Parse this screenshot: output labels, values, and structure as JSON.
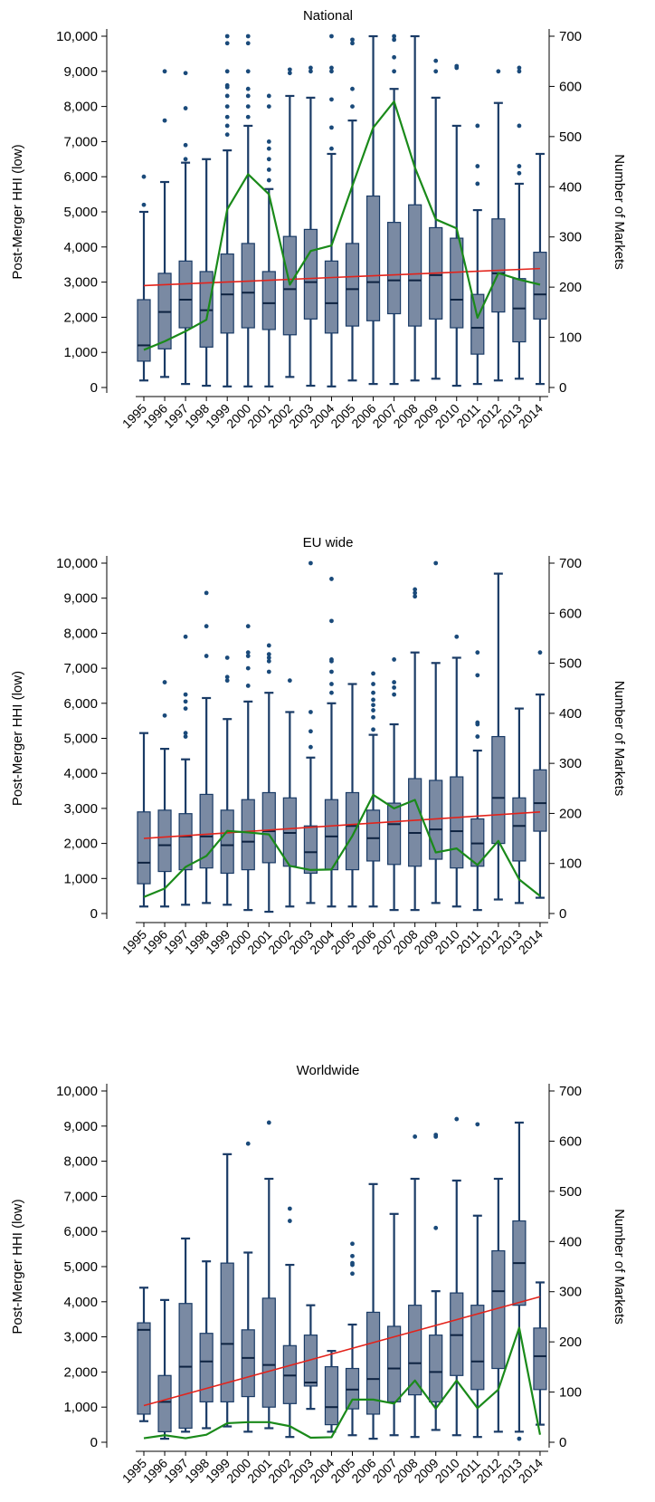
{
  "chart_data": [
    {
      "type": "box",
      "title": "National",
      "ylabel": "Post-Merger HHI (low)",
      "y2label": "Number of Markets",
      "ylim": [
        0,
        10000
      ],
      "y2lim": [
        0,
        700
      ],
      "yticks": [
        "0",
        "1,000",
        "2,000",
        "3,000",
        "4,000",
        "5,000",
        "6,000",
        "7,000",
        "8,000",
        "9,000",
        "10,000"
      ],
      "y2ticks": [
        "0",
        "100",
        "200",
        "300",
        "400",
        "500",
        "600",
        "700"
      ],
      "categories": [
        "1995",
        "1996",
        "1997",
        "1998",
        "1999",
        "2000",
        "2001",
        "2002",
        "2003",
        "2004",
        "2005",
        "2006",
        "2007",
        "2008",
        "2009",
        "2010",
        "2011",
        "2012",
        "2013",
        "2014"
      ],
      "boxes": [
        {
          "wlo": 200,
          "q1": 750,
          "med": 1200,
          "q3": 2500,
          "whi": 5000,
          "out": [
            5200,
            6000
          ]
        },
        {
          "wlo": 300,
          "q1": 1100,
          "med": 2150,
          "q3": 3250,
          "whi": 5850,
          "out": [
            7600,
            9000
          ]
        },
        {
          "wlo": 100,
          "q1": 1700,
          "med": 2500,
          "q3": 3600,
          "whi": 6400,
          "out": [
            6500,
            6900,
            7950,
            8950
          ]
        },
        {
          "wlo": 50,
          "q1": 1150,
          "med": 2200,
          "q3": 3300,
          "whi": 6500,
          "out": []
        },
        {
          "wlo": 30,
          "q1": 1550,
          "med": 2650,
          "q3": 3800,
          "whi": 6750,
          "out": [
            7200,
            7450,
            7700,
            8000,
            8300,
            8550,
            8600,
            9000,
            9800,
            10000
          ]
        },
        {
          "wlo": 30,
          "q1": 1700,
          "med": 2700,
          "q3": 4100,
          "whi": 7450,
          "out": [
            7700,
            8000,
            8300,
            8500,
            9000,
            9800,
            10000
          ]
        },
        {
          "wlo": 30,
          "q1": 1650,
          "med": 2400,
          "q3": 3300,
          "whi": 5650,
          "out": [
            5900,
            6200,
            6500,
            6800,
            7000,
            8000,
            8300
          ]
        },
        {
          "wlo": 300,
          "q1": 1500,
          "med": 2800,
          "q3": 4300,
          "whi": 8300,
          "out": [
            8950,
            9050
          ]
        },
        {
          "wlo": 50,
          "q1": 1950,
          "med": 3000,
          "q3": 4500,
          "whi": 8250,
          "out": [
            9000,
            9100
          ]
        },
        {
          "wlo": 30,
          "q1": 1550,
          "med": 2400,
          "q3": 3600,
          "whi": 6650,
          "out": [
            6800,
            7400,
            8200,
            9000,
            9100,
            10000
          ]
        },
        {
          "wlo": 200,
          "q1": 1750,
          "med": 2800,
          "q3": 4100,
          "whi": 7600,
          "out": [
            8000,
            8500,
            9800,
            9900
          ]
        },
        {
          "wlo": 100,
          "q1": 1900,
          "med": 3000,
          "q3": 5450,
          "whi": 10000,
          "out": []
        },
        {
          "wlo": 100,
          "q1": 2100,
          "med": 3050,
          "q3": 4700,
          "whi": 8500,
          "out": [
            9000,
            9400,
            9900,
            10000
          ]
        },
        {
          "wlo": 200,
          "q1": 1750,
          "med": 3050,
          "q3": 5200,
          "whi": 10000,
          "out": []
        },
        {
          "wlo": 250,
          "q1": 1950,
          "med": 3200,
          "q3": 4550,
          "whi": 8250,
          "out": [
            9000,
            9300
          ]
        },
        {
          "wlo": 50,
          "q1": 1700,
          "med": 2500,
          "q3": 4250,
          "whi": 7450,
          "out": [
            9100,
            9150
          ]
        },
        {
          "wlo": 100,
          "q1": 950,
          "med": 1700,
          "q3": 2650,
          "whi": 5050,
          "out": [
            5800,
            6300,
            7450
          ]
        },
        {
          "wlo": 200,
          "q1": 2150,
          "med": 3250,
          "q3": 4800,
          "whi": 8100,
          "out": [
            9000
          ]
        },
        {
          "wlo": 250,
          "q1": 1300,
          "med": 2250,
          "q3": 3100,
          "whi": 5800,
          "out": [
            6100,
            6300,
            7450,
            9000,
            9100
          ]
        },
        {
          "wlo": 100,
          "q1": 1950,
          "med": 2650,
          "q3": 3850,
          "whi": 6650,
          "out": []
        }
      ],
      "markets": [
        75,
        92,
        112,
        135,
        355,
        425,
        385,
        205,
        272,
        283,
        402,
        518,
        570,
        438,
        335,
        317,
        139,
        228,
        215,
        205
      ],
      "trend": [
        203,
        237
      ]
    },
    {
      "type": "box",
      "title": "EU wide",
      "ylabel": "Post-Merger HHI (low)",
      "y2label": "Number of Markets",
      "ylim": [
        0,
        10000
      ],
      "y2lim": [
        0,
        700
      ],
      "yticks": [
        "0",
        "1,000",
        "2,000",
        "3,000",
        "4,000",
        "5,000",
        "6,000",
        "7,000",
        "8,000",
        "9,000",
        "10,000"
      ],
      "y2ticks": [
        "0",
        "100",
        "200",
        "300",
        "400",
        "500",
        "600",
        "700"
      ],
      "categories": [
        "1995",
        "1996",
        "1997",
        "1998",
        "1999",
        "2000",
        "2001",
        "2002",
        "2003",
        "2004",
        "2005",
        "2006",
        "2007",
        "2008",
        "2009",
        "2010",
        "2011",
        "2012",
        "2013",
        "2014"
      ],
      "boxes": [
        {
          "wlo": 200,
          "q1": 850,
          "med": 1450,
          "q3": 2900,
          "whi": 5150,
          "out": []
        },
        {
          "wlo": 200,
          "q1": 1200,
          "med": 1950,
          "q3": 2950,
          "whi": 4700,
          "out": [
            5650,
            6600
          ]
        },
        {
          "wlo": 250,
          "q1": 1250,
          "med": 2200,
          "q3": 2850,
          "whi": 4400,
          "out": [
            5050,
            5150,
            5850,
            6050,
            6250,
            7900
          ]
        },
        {
          "wlo": 300,
          "q1": 1300,
          "med": 2200,
          "q3": 3400,
          "whi": 6150,
          "out": [
            7350,
            8200,
            9150
          ]
        },
        {
          "wlo": 250,
          "q1": 1150,
          "med": 1950,
          "q3": 2950,
          "whi": 5550,
          "out": [
            6650,
            6750,
            7300
          ]
        },
        {
          "wlo": 100,
          "q1": 1250,
          "med": 2050,
          "q3": 3250,
          "whi": 6050,
          "out": [
            6500,
            7000,
            7350,
            7450,
            8200
          ]
        },
        {
          "wlo": 50,
          "q1": 1450,
          "med": 2350,
          "q3": 3450,
          "whi": 6300,
          "out": [
            6900,
            7200,
            7300,
            7400,
            7650
          ]
        },
        {
          "wlo": 200,
          "q1": 1350,
          "med": 2300,
          "q3": 3300,
          "whi": 5750,
          "out": [
            6650
          ]
        },
        {
          "wlo": 300,
          "q1": 1150,
          "med": 1750,
          "q3": 2500,
          "whi": 4450,
          "out": [
            4750,
            5200,
            5750,
            10000
          ]
        },
        {
          "wlo": 200,
          "q1": 1250,
          "med": 2200,
          "q3": 3250,
          "whi": 6000,
          "out": [
            6300,
            6550,
            6900,
            7200,
            7250,
            8350,
            9550
          ]
        },
        {
          "wlo": 200,
          "q1": 1250,
          "med": 2500,
          "q3": 3450,
          "whi": 6550,
          "out": []
        },
        {
          "wlo": 200,
          "q1": 1500,
          "med": 2150,
          "q3": 2950,
          "whi": 5100,
          "out": [
            5250,
            5600,
            5800,
            5950,
            6100,
            6300,
            6550,
            6850
          ]
        },
        {
          "wlo": 100,
          "q1": 1400,
          "med": 2550,
          "q3": 3150,
          "whi": 5400,
          "out": [
            6250,
            6450,
            6600,
            7250
          ]
        },
        {
          "wlo": 100,
          "q1": 1350,
          "med": 2300,
          "q3": 3850,
          "whi": 7450,
          "out": [
            9050,
            9150,
            9250
          ]
        },
        {
          "wlo": 300,
          "q1": 1550,
          "med": 2400,
          "q3": 3800,
          "whi": 7150,
          "out": [
            10000
          ]
        },
        {
          "wlo": 200,
          "q1": 1300,
          "med": 2350,
          "q3": 3900,
          "whi": 7300,
          "out": [
            7900
          ]
        },
        {
          "wlo": 100,
          "q1": 1350,
          "med": 2000,
          "q3": 2700,
          "whi": 4650,
          "out": [
            5050,
            5400,
            5450,
            6800,
            7450
          ]
        },
        {
          "wlo": 400,
          "q1": 2000,
          "med": 3300,
          "q3": 5050,
          "whi": 9700,
          "out": []
        },
        {
          "wlo": 300,
          "q1": 1500,
          "med": 2500,
          "q3": 3300,
          "whi": 5850,
          "out": []
        },
        {
          "wlo": 450,
          "q1": 2350,
          "med": 3150,
          "q3": 4100,
          "whi": 6250,
          "out": [
            7450
          ]
        }
      ],
      "markets": [
        33,
        50,
        93,
        115,
        165,
        162,
        158,
        95,
        87,
        88,
        155,
        237,
        210,
        227,
        122,
        130,
        97,
        145,
        68,
        35
      ],
      "trend": [
        150,
        203
      ]
    },
    {
      "type": "box",
      "title": "Worldwide",
      "ylabel": "Post-Merger HHI (low)",
      "y2label": "Number of Markets",
      "ylim": [
        0,
        10000
      ],
      "y2lim": [
        0,
        700
      ],
      "yticks": [
        "0",
        "1,000",
        "2,000",
        "3,000",
        "4,000",
        "5,000",
        "6,000",
        "7,000",
        "8,000",
        "9,000",
        "10,000"
      ],
      "y2ticks": [
        "0",
        "100",
        "200",
        "300",
        "400",
        "500",
        "600",
        "700"
      ],
      "categories": [
        "1995",
        "1996",
        "1997",
        "1998",
        "1999",
        "2000",
        "2001",
        "2002",
        "2003",
        "2004",
        "2005",
        "2006",
        "2007",
        "2008",
        "2009",
        "2010",
        "2011",
        "2012",
        "2013",
        "2014"
      ],
      "boxes": [
        {
          "wlo": 600,
          "q1": 800,
          "med": 3200,
          "q3": 3400,
          "whi": 4400,
          "out": []
        },
        {
          "wlo": 100,
          "q1": 300,
          "med": 1150,
          "q3": 1900,
          "whi": 4050,
          "out": []
        },
        {
          "wlo": 300,
          "q1": 400,
          "med": 2150,
          "q3": 3950,
          "whi": 5800,
          "out": []
        },
        {
          "wlo": 400,
          "q1": 1150,
          "med": 2300,
          "q3": 3100,
          "whi": 5150,
          "out": []
        },
        {
          "wlo": 450,
          "q1": 1150,
          "med": 2800,
          "q3": 5100,
          "whi": 8200,
          "out": []
        },
        {
          "wlo": 300,
          "q1": 1300,
          "med": 2400,
          "q3": 3200,
          "whi": 5400,
          "out": [
            8500
          ]
        },
        {
          "wlo": 400,
          "q1": 1000,
          "med": 2200,
          "q3": 4100,
          "whi": 7500,
          "out": [
            9100
          ]
        },
        {
          "wlo": 150,
          "q1": 1100,
          "med": 1900,
          "q3": 2750,
          "whi": 5050,
          "out": [
            6300,
            6650
          ]
        },
        {
          "wlo": 950,
          "q1": 1600,
          "med": 1700,
          "q3": 3050,
          "whi": 3900,
          "out": []
        },
        {
          "wlo": 300,
          "q1": 500,
          "med": 1000,
          "q3": 2150,
          "whi": 2600,
          "out": []
        },
        {
          "wlo": 200,
          "q1": 950,
          "med": 1500,
          "q3": 2100,
          "whi": 3350,
          "out": [
            4800,
            5050,
            5100,
            5300,
            5650
          ]
        },
        {
          "wlo": 100,
          "q1": 800,
          "med": 1800,
          "q3": 3700,
          "whi": 7350,
          "out": []
        },
        {
          "wlo": 200,
          "q1": 1150,
          "med": 2100,
          "q3": 3300,
          "whi": 6500,
          "out": []
        },
        {
          "wlo": 150,
          "q1": 1350,
          "med": 2250,
          "q3": 3900,
          "whi": 7500,
          "out": [
            8700
          ]
        },
        {
          "wlo": 350,
          "q1": 1150,
          "med": 2000,
          "q3": 3050,
          "whi": 4300,
          "out": [
            6100,
            8700,
            8750
          ]
        },
        {
          "wlo": 200,
          "q1": 1900,
          "med": 3050,
          "q3": 4250,
          "whi": 7450,
          "out": [
            9200
          ]
        },
        {
          "wlo": 150,
          "q1": 1500,
          "med": 2300,
          "q3": 3900,
          "whi": 6450,
          "out": [
            9050
          ]
        },
        {
          "wlo": 300,
          "q1": 2100,
          "med": 4300,
          "q3": 5450,
          "whi": 7500,
          "out": []
        },
        {
          "wlo": 300,
          "q1": 3900,
          "med": 5100,
          "q3": 6300,
          "whi": 9100,
          "out": [
            100
          ]
        },
        {
          "wlo": 500,
          "q1": 1500,
          "med": 2450,
          "q3": 3250,
          "whi": 4550,
          "out": []
        }
      ],
      "markets": [
        8,
        14,
        8,
        15,
        38,
        40,
        40,
        32,
        9,
        10,
        85,
        85,
        77,
        123,
        67,
        123,
        68,
        105,
        228,
        15
      ],
      "trend": [
        73,
        290
      ]
    }
  ],
  "colors": {
    "box_fill": "#7a8aa3",
    "box_stroke": "#1a3b66",
    "outlier": "#1a4a7a",
    "line": "#1a8a1a",
    "trend": "#e3231b",
    "axis": "#000000"
  }
}
